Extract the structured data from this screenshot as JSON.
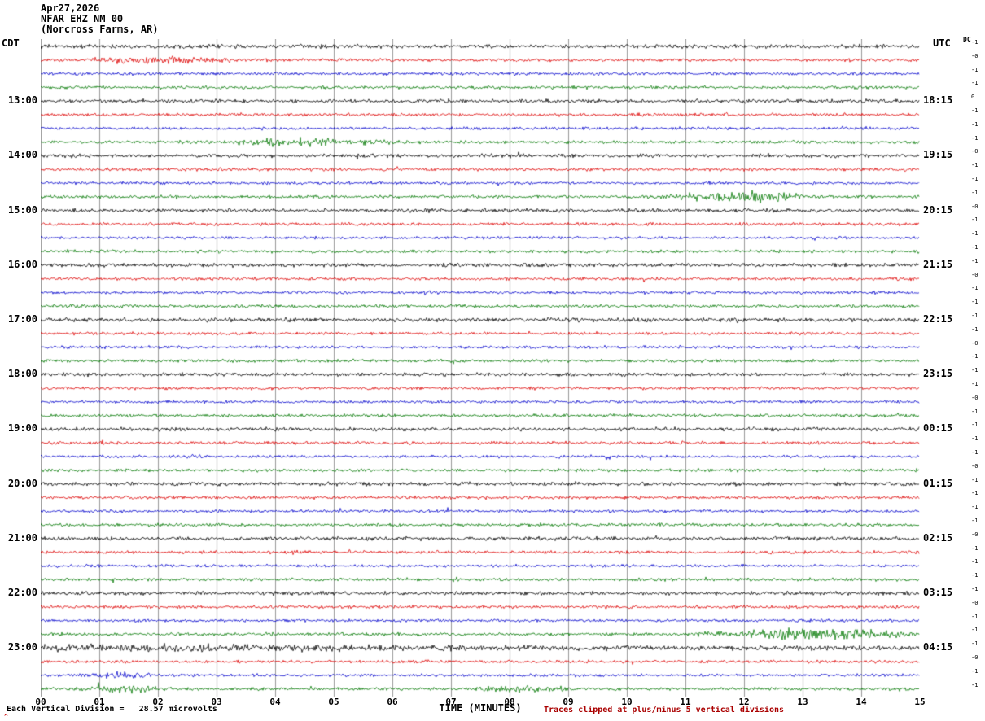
{
  "header": {
    "date": "Apr27,2026",
    "station": "NFAR EHZ NM 00",
    "location": "(Norcross Farms, AR)"
  },
  "axes": {
    "left_tz": "CDT",
    "right_tz": "UTC",
    "dc_header": "DC",
    "xlabel": "TIME (MINUTES)",
    "x_ticks": [
      "00",
      "01",
      "02",
      "03",
      "04",
      "05",
      "06",
      "07",
      "08",
      "09",
      "10",
      "11",
      "12",
      "13",
      "14",
      "15"
    ]
  },
  "footer": {
    "scale_label": "Each Vertical Division =",
    "scale_value": "28.57 microvolts",
    "clip_note": "Traces clipped at plus/minus 5 vertical divisions",
    "corner_mark": "^"
  },
  "colors": {
    "black": "#000000",
    "red": "#dd0000",
    "blue": "#0000cc",
    "green": "#007700",
    "grid": "#9a9a9a"
  },
  "chart_data": {
    "type": "line",
    "title": "NFAR EHZ NM 00 (Norcross Farms, AR) Apr27,2026 seismogram",
    "xlabel": "TIME (MINUTES)",
    "ylabel": "",
    "x_range_minutes": [
      0,
      15
    ],
    "minutes_per_line": 15,
    "minute_gridlines": 15,
    "vertical_division_microvolts": 28.57,
    "clip_divisions": 5,
    "left_axis_timezone": "CDT",
    "right_axis_timezone": "UTC",
    "color_cycle": [
      "black",
      "red",
      "blue",
      "green"
    ],
    "left_hour_labels": [
      "13:00",
      "14:00",
      "15:00",
      "16:00",
      "17:00",
      "18:00",
      "19:00",
      "20:00",
      "21:00",
      "22:00",
      "23:00"
    ],
    "right_hour_labels": [
      "18:15",
      "19:15",
      "20:15",
      "21:15",
      "22:15",
      "23:15",
      "00:15",
      "01:15",
      "02:15",
      "03:15",
      "04:15"
    ],
    "rows": [
      {
        "t": "12:00",
        "c": "black",
        "dc": "-1",
        "amp": 1.3
      },
      {
        "t": "12:15",
        "c": "red",
        "dc": "-0",
        "amp": 1.0,
        "ev": [
          {
            "x": 0.13,
            "w": 0.05,
            "g": 1.8
          }
        ]
      },
      {
        "t": "12:30",
        "c": "blue",
        "dc": "-1",
        "amp": 0.95
      },
      {
        "t": "12:45",
        "c": "green",
        "dc": "-1",
        "amp": 1.0
      },
      {
        "t": "13:00",
        "c": "black",
        "dc": "0",
        "amp": 1.2,
        "L": "13:00",
        "R": "18:15"
      },
      {
        "t": "13:15",
        "c": "red",
        "dc": "-1",
        "amp": 1.0
      },
      {
        "t": "13:30",
        "c": "blue",
        "dc": "-1",
        "amp": 0.95
      },
      {
        "t": "13:45",
        "c": "green",
        "dc": "-1",
        "amp": 1.0,
        "ev": [
          {
            "x": 0.3,
            "w": 0.06,
            "g": 1.8
          }
        ]
      },
      {
        "t": "14:00",
        "c": "black",
        "dc": "-0",
        "amp": 1.2,
        "L": "14:00",
        "R": "19:15"
      },
      {
        "t": "14:15",
        "c": "red",
        "dc": "-1",
        "amp": 1.0
      },
      {
        "t": "14:30",
        "c": "blue",
        "dc": "-1",
        "amp": 0.95
      },
      {
        "t": "14:45",
        "c": "green",
        "dc": "-1",
        "amp": 1.0,
        "ev": [
          {
            "x": 0.8,
            "w": 0.05,
            "g": 2.6
          }
        ]
      },
      {
        "t": "15:00",
        "c": "black",
        "dc": "-0",
        "amp": 1.2,
        "L": "15:00",
        "R": "20:15"
      },
      {
        "t": "15:15",
        "c": "red",
        "dc": "-1",
        "amp": 1.05
      },
      {
        "t": "15:30",
        "c": "blue",
        "dc": "-1",
        "amp": 0.95
      },
      {
        "t": "15:45",
        "c": "green",
        "dc": "-1",
        "amp": 1.0
      },
      {
        "t": "16:00",
        "c": "black",
        "dc": "-1",
        "amp": 1.25,
        "L": "16:00",
        "R": "21:15"
      },
      {
        "t": "16:15",
        "c": "red",
        "dc": "-0",
        "amp": 1.0
      },
      {
        "t": "16:30",
        "c": "blue",
        "dc": "-1",
        "amp": 0.95
      },
      {
        "t": "16:45",
        "c": "green",
        "dc": "-1",
        "amp": 1.0
      },
      {
        "t": "17:00",
        "c": "black",
        "dc": "-1",
        "amp": 1.3,
        "L": "17:00",
        "R": "22:15"
      },
      {
        "t": "17:15",
        "c": "red",
        "dc": "-1",
        "amp": 1.0
      },
      {
        "t": "17:30",
        "c": "blue",
        "dc": "-0",
        "amp": 0.95
      },
      {
        "t": "17:45",
        "c": "green",
        "dc": "-1",
        "amp": 1.0
      },
      {
        "t": "18:00",
        "c": "black",
        "dc": "-1",
        "amp": 1.2,
        "L": "18:00",
        "R": "23:15"
      },
      {
        "t": "18:15",
        "c": "red",
        "dc": "-1",
        "amp": 1.0
      },
      {
        "t": "18:30",
        "c": "blue",
        "dc": "-0",
        "amp": 0.95
      },
      {
        "t": "18:45",
        "c": "green",
        "dc": "-1",
        "amp": 1.0
      },
      {
        "t": "19:00",
        "c": "black",
        "dc": "-1",
        "amp": 1.2,
        "L": "19:00",
        "R": "00:15"
      },
      {
        "t": "19:15",
        "c": "red",
        "dc": "-1",
        "amp": 1.0
      },
      {
        "t": "19:30",
        "c": "blue",
        "dc": "-1",
        "amp": 0.95
      },
      {
        "t": "19:45",
        "c": "green",
        "dc": "-0",
        "amp": 1.0
      },
      {
        "t": "20:00",
        "c": "black",
        "dc": "-1",
        "amp": 1.2,
        "L": "20:00",
        "R": "01:15"
      },
      {
        "t": "20:15",
        "c": "red",
        "dc": "-1",
        "amp": 1.0
      },
      {
        "t": "20:30",
        "c": "blue",
        "dc": "-1",
        "amp": 0.95
      },
      {
        "t": "20:45",
        "c": "green",
        "dc": "-1",
        "amp": 1.0
      },
      {
        "t": "21:00",
        "c": "black",
        "dc": "-0",
        "amp": 1.2,
        "L": "21:00",
        "R": "02:15"
      },
      {
        "t": "21:15",
        "c": "red",
        "dc": "-1",
        "amp": 1.0
      },
      {
        "t": "21:30",
        "c": "blue",
        "dc": "-1",
        "amp": 0.95
      },
      {
        "t": "21:45",
        "c": "green",
        "dc": "-1",
        "amp": 1.0
      },
      {
        "t": "22:00",
        "c": "black",
        "dc": "-1",
        "amp": 1.2,
        "L": "22:00",
        "R": "03:15"
      },
      {
        "t": "22:15",
        "c": "red",
        "dc": "-0",
        "amp": 1.0
      },
      {
        "t": "22:30",
        "c": "blue",
        "dc": "-1",
        "amp": 0.95
      },
      {
        "t": "22:45",
        "c": "green",
        "dc": "-1",
        "amp": 1.05,
        "ev": [
          {
            "x": 0.88,
            "w": 0.06,
            "g": 3.0
          }
        ]
      },
      {
        "t": "23:00",
        "c": "black",
        "dc": "-1",
        "amp": 1.5,
        "L": "23:00",
        "R": "04:15",
        "ev": [
          {
            "x": 0.15,
            "w": 0.25,
            "g": 0.7
          }
        ]
      },
      {
        "t": "23:15",
        "c": "red",
        "dc": "-0",
        "amp": 1.0
      },
      {
        "t": "23:30",
        "c": "blue",
        "dc": "-1",
        "amp": 0.95,
        "ev": [
          {
            "x": 0.09,
            "w": 0.02,
            "g": 2.0
          }
        ]
      },
      {
        "t": "23:45",
        "c": "green",
        "dc": "-1",
        "amp": 1.0,
        "ev": [
          {
            "x": 0.09,
            "w": 0.03,
            "g": 1.6
          },
          {
            "x": 0.55,
            "w": 0.03,
            "g": 1.4
          }
        ]
      }
    ]
  }
}
